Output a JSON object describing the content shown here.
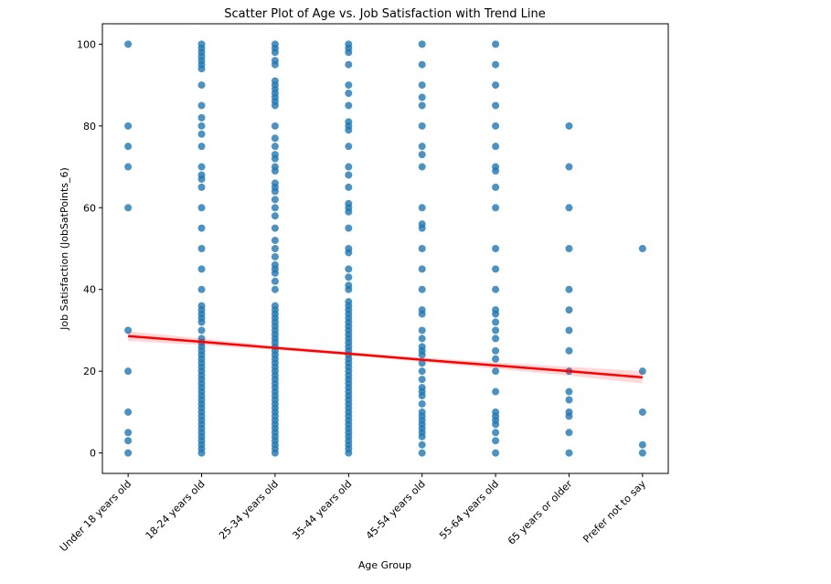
{
  "chart_data": {
    "type": "scatter",
    "title": "Scatter Plot of Age vs. Job Satisfaction with Trend Line",
    "x_label": "Age Group",
    "y_label": "Job Satisfaction (JobSatPoints_6)",
    "categories": [
      "Under 18 years old",
      "18-24 years old",
      "25-34 years old",
      "35-44 years old",
      "45-54 years old",
      "55-64 years old",
      "65 years or older",
      "Prefer not to say"
    ],
    "color": "#1f77b4",
    "values": [
      [
        100,
        80,
        75,
        70,
        60,
        30,
        20,
        10,
        5,
        3,
        0
      ],
      [
        100,
        99,
        98,
        97,
        96,
        95,
        94,
        90,
        85,
        82,
        80,
        78,
        75,
        70,
        68,
        67,
        65,
        60,
        55,
        50,
        45,
        40,
        36,
        35,
        34,
        33,
        32,
        30,
        28,
        27,
        26,
        25,
        24,
        23,
        22,
        21,
        20,
        19,
        18,
        17,
        16,
        15,
        14,
        13,
        12,
        11,
        10,
        9,
        8,
        7,
        6,
        5,
        4,
        3,
        2,
        1,
        0
      ],
      [
        100,
        99,
        98,
        96,
        95,
        91,
        90,
        89,
        88,
        87,
        86,
        85,
        80,
        77,
        75,
        73,
        72,
        70,
        69,
        66,
        65,
        64,
        62,
        60,
        58,
        55,
        52,
        50,
        48,
        46,
        45,
        44,
        42,
        40,
        36,
        35,
        34,
        33,
        32,
        31,
        30,
        29,
        28,
        27,
        26,
        25,
        24,
        23,
        22,
        21,
        20,
        19,
        18,
        17,
        16,
        15,
        14,
        13,
        12,
        11,
        10,
        9,
        8,
        7,
        6,
        5,
        4,
        3,
        2,
        1,
        0
      ],
      [
        100,
        99,
        98,
        95,
        90,
        88,
        85,
        81,
        80,
        79,
        75,
        70,
        68,
        65,
        61,
        60,
        59,
        55,
        50,
        49,
        45,
        43,
        41,
        40,
        37,
        36,
        35,
        34,
        33,
        32,
        31,
        30,
        29,
        28,
        27,
        26,
        25,
        24,
        23,
        22,
        21,
        20,
        19,
        18,
        17,
        16,
        15,
        14,
        13,
        12,
        11,
        10,
        9,
        8,
        7,
        6,
        5,
        4,
        3,
        2,
        1,
        0
      ],
      [
        100,
        95,
        90,
        87,
        85,
        80,
        75,
        73,
        70,
        60,
        56,
        55,
        50,
        45,
        40,
        35,
        34,
        30,
        28,
        26,
        25,
        24,
        22,
        20,
        18,
        16,
        15,
        14,
        12,
        10,
        9,
        8,
        7,
        6,
        5,
        4,
        2,
        0
      ],
      [
        100,
        95,
        90,
        85,
        80,
        75,
        70,
        69,
        65,
        60,
        50,
        45,
        40,
        35,
        34,
        32,
        30,
        28,
        25,
        23,
        20,
        15,
        10,
        9,
        8,
        7,
        5,
        3,
        0
      ],
      [
        80,
        70,
        60,
        50,
        40,
        35,
        30,
        25,
        20,
        15,
        13,
        10,
        9,
        5,
        0
      ],
      [
        50,
        20,
        10,
        2,
        0
      ]
    ],
    "trend": {
      "color": "#ff0000",
      "values": [
        28.6,
        27.2,
        25.7,
        24.3,
        22.8,
        21.4,
        20.0,
        18.5
      ],
      "ci_lower": [
        27.4,
        26.4,
        25.2,
        23.9,
        22.3,
        20.6,
        18.9,
        17.0
      ],
      "ci_upper": [
        29.8,
        28.0,
        26.2,
        24.7,
        23.3,
        22.2,
        21.1,
        20.0
      ]
    },
    "ylim": [
      -5,
      105
    ],
    "yticks": [
      0,
      20,
      40,
      60,
      80,
      100
    ]
  }
}
